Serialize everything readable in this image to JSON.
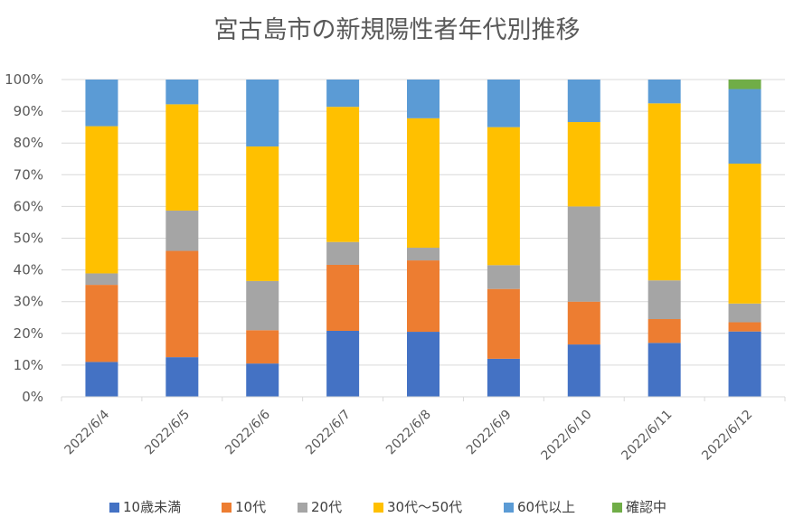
{
  "chart_data": {
    "type": "bar",
    "stacked": "percent",
    "title": "宮古島市の新規陽性者年代別推移",
    "xlabel": "",
    "ylabel": "",
    "ylim": [
      0,
      100
    ],
    "y_ticks": [
      "0%",
      "10%",
      "20%",
      "30%",
      "40%",
      "50%",
      "60%",
      "70%",
      "80%",
      "90%",
      "100%"
    ],
    "grid": "horizontal",
    "legend_position": "bottom",
    "categories": [
      "2022/6/4",
      "2022/6/5",
      "2022/6/6",
      "2022/6/7",
      "2022/6/8",
      "2022/6/9",
      "2022/6/10",
      "2022/6/11",
      "2022/6/12"
    ],
    "series": [
      {
        "name": "10歳未満",
        "color": "#4472C4",
        "values": [
          11,
          12.5,
          10.5,
          20.8,
          20.5,
          12,
          16.5,
          17,
          20.6
        ]
      },
      {
        "name": "10代",
        "color": "#ED7D31",
        "values": [
          24.3,
          33.5,
          10.5,
          20.8,
          22.5,
          22,
          13.5,
          7.5,
          2.9
        ]
      },
      {
        "name": "20代",
        "color": "#A5A5A5",
        "values": [
          3.6,
          12.7,
          15.5,
          7.2,
          4,
          7.5,
          30,
          12.2,
          5.9
        ]
      },
      {
        "name": "30代～50代",
        "color": "#FFC000",
        "values": [
          46.4,
          33.5,
          42.4,
          42.6,
          40.8,
          43.5,
          26.6,
          55.8,
          44.1
        ]
      },
      {
        "name": "60代以上",
        "color": "#5B9BD5",
        "values": [
          14.7,
          7.8,
          21.1,
          8.6,
          12.2,
          15,
          13.4,
          7.5,
          23.5
        ]
      },
      {
        "name": "確認中",
        "color": "#70AD47",
        "values": [
          0,
          0,
          0,
          0,
          0,
          0,
          0,
          0,
          3
        ]
      }
    ]
  }
}
